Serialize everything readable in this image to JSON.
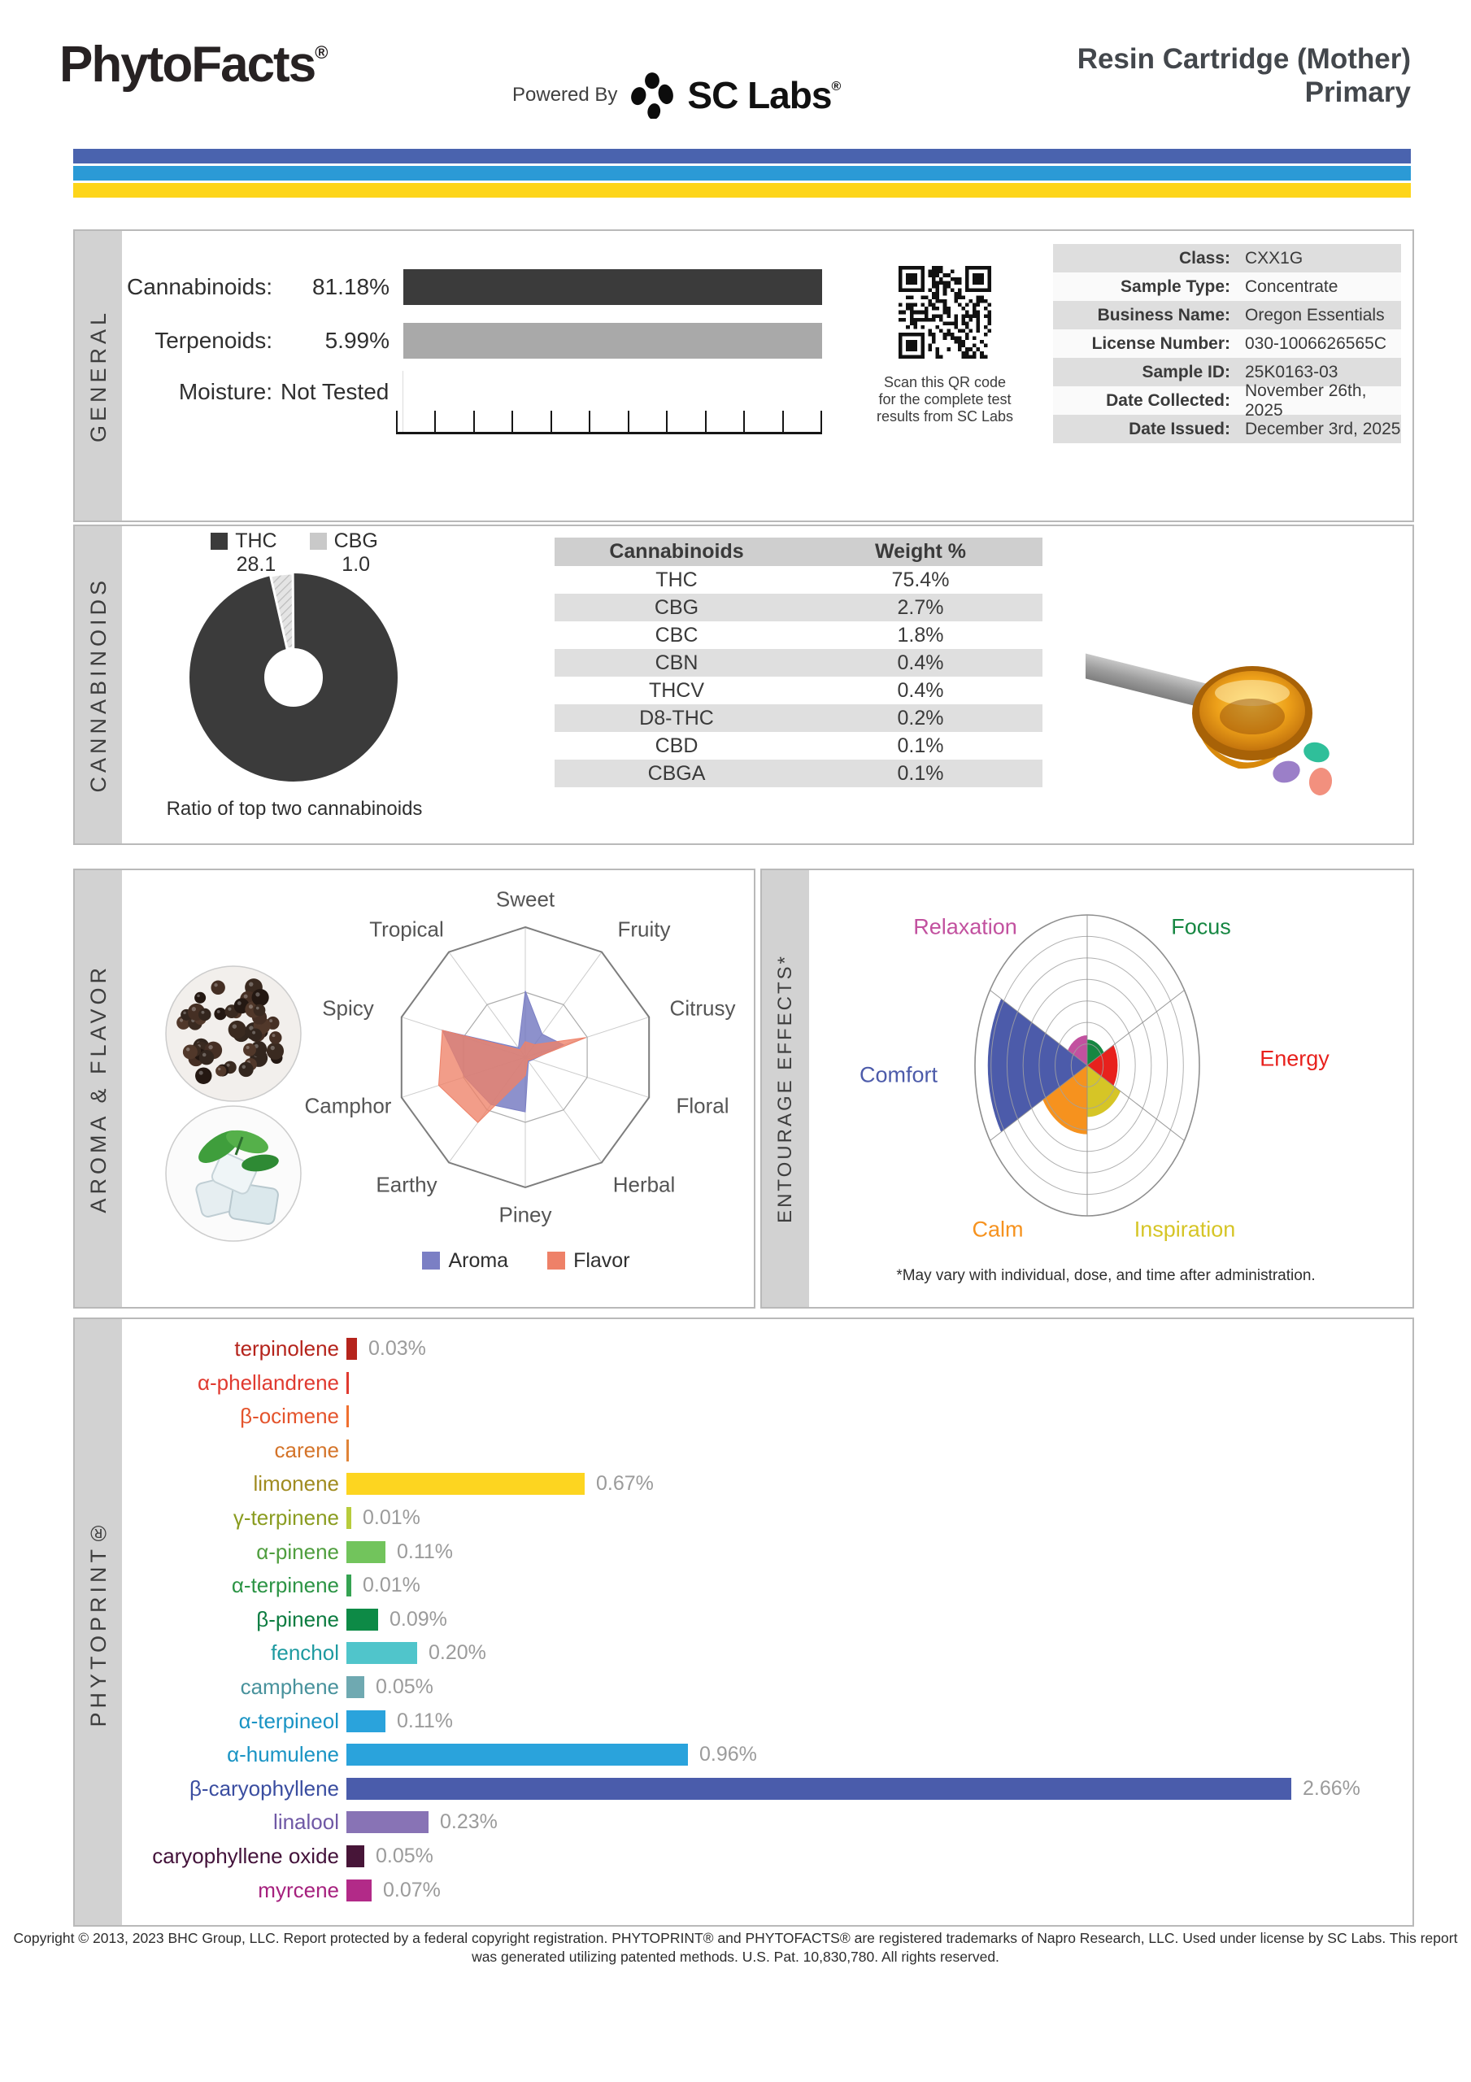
{
  "header": {
    "brand": "PhytoFacts",
    "brand_reg": "®",
    "powered_by": "Powered By",
    "lab_name": "SC Labs",
    "lab_reg": "®",
    "title_line1": "Resin Cartridge (Mother)",
    "title_line2": "Primary"
  },
  "stripes": [
    "#4a63ae",
    "#2b9ad6",
    "#fdd51a"
  ],
  "general": {
    "label": "GENERAL",
    "metrics": [
      {
        "label": "Cannabinoids:",
        "value": "81.18%",
        "bar_color": "#3b3b3b"
      },
      {
        "label": "Terpenoids:",
        "value": "5.99%",
        "bar_color": "#a9a9a9"
      },
      {
        "label": "Moisture:",
        "value": "Not Tested",
        "bar_color": null
      }
    ],
    "qr_caption_lines": [
      "Scan this QR code",
      "for the complete test",
      "results from SC Labs"
    ],
    "info": [
      {
        "label": "Class:",
        "value": "CXX1G"
      },
      {
        "label": "Sample Type:",
        "value": "Concentrate"
      },
      {
        "label": "Business Name:",
        "value": "Oregon Essentials"
      },
      {
        "label": "License Number:",
        "value": "030-1006626565C"
      },
      {
        "label": "Sample ID:",
        "value": "25K0163-03"
      },
      {
        "label": "Date Collected:",
        "value": "November 26th, 2025"
      },
      {
        "label": "Date Issued:",
        "value": "December 3rd, 2025"
      }
    ]
  },
  "cannabinoids": {
    "label": "CANNABINOIDS",
    "legend": [
      {
        "name": "THC",
        "value": "28.1",
        "color": "#3b3b3b",
        "hatched": false
      },
      {
        "name": "CBG",
        "value": "1.0",
        "color": "#c9c9c9",
        "hatched": true
      }
    ],
    "donut": {
      "thc": 28.1,
      "cbg": 1.0
    },
    "caption": "Ratio of top two cannabinoids",
    "table_headers": [
      "Cannabinoids",
      "Weight %"
    ],
    "table_rows": [
      [
        "THC",
        "75.4%"
      ],
      [
        "CBG",
        "2.7%"
      ],
      [
        "CBC",
        "1.8%"
      ],
      [
        "CBN",
        "0.4%"
      ],
      [
        "THCV",
        "0.4%"
      ],
      [
        "D8-THC",
        "0.2%"
      ],
      [
        "CBD",
        "0.1%"
      ],
      [
        "CBGA",
        "0.1%"
      ]
    ]
  },
  "aroma_flavor": {
    "label": "AROMA & FLAVOR",
    "axes": [
      "Sweet",
      "Fruity",
      "Citrusy",
      "Floral",
      "Herbal",
      "Piney",
      "Earthy",
      "Camphor",
      "Spicy",
      "Tropical"
    ],
    "series": [
      {
        "name": "Aroma",
        "color": "#7b7fc4",
        "fill": "rgba(113,117,191,0.8)",
        "values": [
          0.51,
          0.22,
          0.31,
          0.06,
          0.04,
          0.42,
          0.45,
          0.49,
          0.67,
          0.09
        ]
      },
      {
        "name": "Flavor",
        "color": "#ee8168",
        "fill": "rgba(238,129,104,0.78)",
        "values": [
          0.12,
          0.12,
          0.49,
          0.05,
          0.03,
          0.14,
          0.62,
          0.7,
          0.67,
          0.07
        ]
      }
    ]
  },
  "entourage": {
    "label": "ENTOURAGE EFFECTS*",
    "rings": 7,
    "sectors": [
      {
        "name": "Focus",
        "color": "#168742",
        "value": 1.2,
        "start": 30
      },
      {
        "name": "Relaxation",
        "color": "#c2519f",
        "value": 1.4,
        "start": 90
      },
      {
        "name": "Comfort",
        "color": "#4c5baa",
        "value": 6.2,
        "start": 150
      },
      {
        "name": "Calm",
        "color": "#f6921e",
        "value": 3.2,
        "start": 210
      },
      {
        "name": "Inspiration",
        "color": "#d6c526",
        "value": 2.4,
        "start": 270
      },
      {
        "name": "Energy",
        "color": "#e8211d",
        "value": 1.9,
        "start": 330
      }
    ],
    "footnote": "*May vary with individual, dose, and time after administration."
  },
  "phytoprint": {
    "label": "PHYTOPRINT®",
    "terpenes": [
      {
        "name": "terpinolene",
        "display": "0.03%",
        "value": 0.03,
        "color": "#b5241c",
        "bar": "#b5241c",
        "tick": false
      },
      {
        "name": "α-phellandrene",
        "display": "",
        "value": 0.005,
        "color": "#e03a30",
        "bar": "#e03a30",
        "tick": true
      },
      {
        "name": "β-ocimene",
        "display": "",
        "value": 0.005,
        "color": "#e4542c",
        "bar": "#f07030",
        "tick": true
      },
      {
        "name": "carene",
        "display": "",
        "value": 0.005,
        "color": "#d4742a",
        "bar": "#e08438",
        "tick": true
      },
      {
        "name": "limonene",
        "display": "0.67%",
        "value": 0.67,
        "color": "#a08b20",
        "bar": "#fdd520",
        "tick": false
      },
      {
        "name": "γ-terpinene",
        "display": "0.01%",
        "value": 0.01,
        "color": "#8a9c20",
        "bar": "#b8cc3c",
        "tick": false
      },
      {
        "name": "α-pinene",
        "display": "0.11%",
        "value": 0.11,
        "color": "#4f9e3e",
        "bar": "#72c45c",
        "tick": false
      },
      {
        "name": "α-terpinene",
        "display": "0.01%",
        "value": 0.01,
        "color": "#2c9445",
        "bar": "#35a352",
        "tick": false
      },
      {
        "name": "β-pinene",
        "display": "0.09%",
        "value": 0.09,
        "color": "#0c7c40",
        "bar": "#0d8a46",
        "tick": false
      },
      {
        "name": "fenchol",
        "display": "0.20%",
        "value": 0.2,
        "color": "#1d9aa0",
        "bar": "#50c5cb",
        "tick": false
      },
      {
        "name": "camphene",
        "display": "0.05%",
        "value": 0.05,
        "color": "#48929c",
        "bar": "#6fa9b1",
        "tick": false
      },
      {
        "name": "α-terpineol",
        "display": "0.11%",
        "value": 0.11,
        "color": "#1a94c4",
        "bar": "#2aa3dc",
        "tick": false
      },
      {
        "name": "α-humulene",
        "display": "0.96%",
        "value": 0.96,
        "color": "#1a94c4",
        "bar": "#2aa3dc",
        "tick": false
      },
      {
        "name": "β-caryophyllene",
        "display": "2.66%",
        "value": 2.66,
        "color": "#3a4da0",
        "bar": "#4a5cab",
        "tick": false
      },
      {
        "name": "linalool",
        "display": "0.23%",
        "value": 0.23,
        "color": "#6f58a5",
        "bar": "#8873b5",
        "tick": false
      },
      {
        "name": "caryophyllene oxide",
        "display": "0.05%",
        "value": 0.05,
        "color": "#43123a",
        "bar": "#471538",
        "tick": false
      },
      {
        "name": "myrcene",
        "display": "0.07%",
        "value": 0.07,
        "color": "#a6217e",
        "bar": "#b22a88",
        "tick": false
      }
    ]
  },
  "footer": {
    "line1": "Copyright © 2013, 2023 BHC Group, LLC. Report protected by a federal copyright registration. PHYTOPRINT® and PHYTOFACTS® are registered trademarks of Napro Research, LLC. Used under license by SC Labs. This report",
    "line2": "was generated utilizing patented methods. U.S. Pat. 10,830,780. All rights reserved."
  },
  "chart_data": [
    {
      "type": "pie",
      "subtype": "donut",
      "title": "Ratio of top two cannabinoids",
      "labels": [
        "THC",
        "CBG"
      ],
      "values": [
        28.1,
        1.0
      ]
    },
    {
      "type": "table",
      "title": "Cannabinoids Weight %",
      "columns": [
        "Cannabinoids",
        "Weight %"
      ],
      "rows": [
        [
          "THC",
          "75.4%"
        ],
        [
          "CBG",
          "2.7%"
        ],
        [
          "CBC",
          "1.8%"
        ],
        [
          "CBN",
          "0.4%"
        ],
        [
          "THCV",
          "0.4%"
        ],
        [
          "D8-THC",
          "0.2%"
        ],
        [
          "CBD",
          "0.1%"
        ],
        [
          "CBGA",
          "0.1%"
        ]
      ]
    },
    {
      "type": "radar",
      "categories": [
        "Sweet",
        "Fruity",
        "Citrusy",
        "Floral",
        "Herbal",
        "Piney",
        "Earthy",
        "Camphor",
        "Spicy",
        "Tropical"
      ],
      "series": [
        {
          "name": "Aroma",
          "values": [
            0.51,
            0.22,
            0.31,
            0.06,
            0.04,
            0.42,
            0.45,
            0.49,
            0.67,
            0.09
          ]
        },
        {
          "name": "Flavor",
          "values": [
            0.12,
            0.12,
            0.49,
            0.05,
            0.03,
            0.14,
            0.62,
            0.7,
            0.67,
            0.07
          ]
        }
      ],
      "rmax": 1,
      "legend_position": "bottom"
    },
    {
      "type": "polar-area",
      "title": "Entourage Effects",
      "categories": [
        "Focus",
        "Relaxation",
        "Comfort",
        "Calm",
        "Inspiration",
        "Energy"
      ],
      "values": [
        1.2,
        1.4,
        6.2,
        3.2,
        2.4,
        1.9
      ],
      "rmax": 7
    },
    {
      "type": "bar",
      "orientation": "horizontal",
      "title": "PHYTOPRINT terpene profile",
      "unit": "%",
      "categories": [
        "terpinolene",
        "α-phellandrene",
        "β-ocimene",
        "carene",
        "limonene",
        "γ-terpinene",
        "α-pinene",
        "α-terpinene",
        "β-pinene",
        "fenchol",
        "camphene",
        "α-terpineol",
        "α-humulene",
        "β-caryophyllene",
        "linalool",
        "caryophyllene oxide",
        "myrcene"
      ],
      "values": [
        0.03,
        0.005,
        0.005,
        0.005,
        0.67,
        0.01,
        0.11,
        0.01,
        0.09,
        0.2,
        0.05,
        0.11,
        0.96,
        2.66,
        0.23,
        0.05,
        0.07
      ]
    }
  ]
}
